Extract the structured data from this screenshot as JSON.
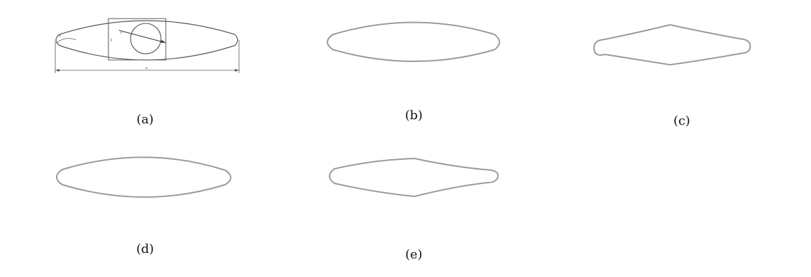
{
  "figure": {
    "panels": [
      {
        "id": "a",
        "label": "(a)"
      },
      {
        "id": "b",
        "label": "(b)"
      },
      {
        "id": "c",
        "label": "(c)"
      },
      {
        "id": "d",
        "label": "(d)"
      },
      {
        "id": "e",
        "label": "(e)"
      }
    ],
    "colors": {
      "outline": "#9a9a9a",
      "dimension_line": "#555555",
      "background": "#ffffff"
    }
  }
}
